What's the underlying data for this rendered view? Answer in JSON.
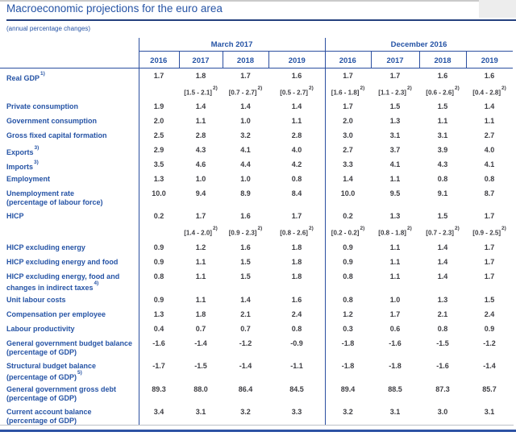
{
  "page": {
    "title": "Macroeconomic projections for the euro area",
    "subtitle": "(annual percentage changes)"
  },
  "table": {
    "groups": [
      {
        "label": "March 2017",
        "years": [
          "2016",
          "2017",
          "2018",
          "2019"
        ]
      },
      {
        "label": "December 2016",
        "years": [
          "2016",
          "2017",
          "2018",
          "2019"
        ]
      }
    ],
    "rows": [
      {
        "label": "Real GDP",
        "label_sup": "1)",
        "march": [
          "1.7",
          "1.8",
          "1.7",
          "1.6"
        ],
        "december": [
          "1.7",
          "1.7",
          "1.6",
          "1.6"
        ],
        "ranges": {
          "sup": "2)",
          "march": [
            "",
            "[1.5 - 2.1]",
            "[0.7 - 2.7]",
            "[0.5 - 2.7]"
          ],
          "december": [
            "[1.6 - 1.8]",
            "[1.1 - 2.3]",
            "[0.6 - 2.6]",
            "[0.4 - 2.8]"
          ]
        }
      },
      {
        "label": "Private consumption",
        "march": [
          "1.9",
          "1.4",
          "1.4",
          "1.4"
        ],
        "december": [
          "1.7",
          "1.5",
          "1.5",
          "1.4"
        ]
      },
      {
        "label": "Government consumption",
        "march": [
          "2.0",
          "1.1",
          "1.0",
          "1.1"
        ],
        "december": [
          "2.0",
          "1.3",
          "1.1",
          "1.1"
        ]
      },
      {
        "label": "Gross fixed capital formation",
        "march": [
          "2.5",
          "2.8",
          "3.2",
          "2.8"
        ],
        "december": [
          "3.0",
          "3.1",
          "3.1",
          "2.7"
        ]
      },
      {
        "label": "Exports",
        "label_sup": "3)",
        "march": [
          "2.9",
          "4.3",
          "4.1",
          "4.0"
        ],
        "december": [
          "2.7",
          "3.7",
          "3.9",
          "4.0"
        ]
      },
      {
        "label": "Imports",
        "label_sup": "3)",
        "march": [
          "3.5",
          "4.6",
          "4.4",
          "4.2"
        ],
        "december": [
          "3.3",
          "4.1",
          "4.3",
          "4.1"
        ]
      },
      {
        "label": "Employment",
        "march": [
          "1.3",
          "1.0",
          "1.0",
          "0.8"
        ],
        "december": [
          "1.4",
          "1.1",
          "0.8",
          "0.8"
        ]
      },
      {
        "label": "Unemployment rate",
        "label2": "(percentage of labour force)",
        "march": [
          "10.0",
          "9.4",
          "8.9",
          "8.4"
        ],
        "december": [
          "10.0",
          "9.5",
          "9.1",
          "8.7"
        ]
      },
      {
        "label": "HICP",
        "march": [
          "0.2",
          "1.7",
          "1.6",
          "1.7"
        ],
        "december": [
          "0.2",
          "1.3",
          "1.5",
          "1.7"
        ],
        "ranges": {
          "sup": "2)",
          "march": [
            "",
            "[1.4 - 2.0]",
            "[0.9 - 2.3]",
            "[0.8 - 2.6]"
          ],
          "december": [
            "[0.2 - 0.2]",
            "[0.8 - 1.8]",
            "[0.7 - 2.3]",
            "[0.9 - 2.5]"
          ]
        }
      },
      {
        "label": "HICP excluding energy",
        "march": [
          "0.9",
          "1.2",
          "1.6",
          "1.8"
        ],
        "december": [
          "0.9",
          "1.1",
          "1.4",
          "1.7"
        ]
      },
      {
        "label": "HICP excluding energy and food",
        "march": [
          "0.9",
          "1.1",
          "1.5",
          "1.8"
        ],
        "december": [
          "0.9",
          "1.1",
          "1.4",
          "1.7"
        ]
      },
      {
        "label": "HICP excluding energy, food and",
        "label2": "changes in indirect taxes",
        "label2_sup": "4)",
        "march": [
          "0.8",
          "1.1",
          "1.5",
          "1.8"
        ],
        "december": [
          "0.8",
          "1.1",
          "1.4",
          "1.7"
        ]
      },
      {
        "label": "Unit labour costs",
        "march": [
          "0.9",
          "1.1",
          "1.4",
          "1.6"
        ],
        "december": [
          "0.8",
          "1.0",
          "1.3",
          "1.5"
        ]
      },
      {
        "label": "Compensation per employee",
        "march": [
          "1.3",
          "1.8",
          "2.1",
          "2.4"
        ],
        "december": [
          "1.2",
          "1.7",
          "2.1",
          "2.4"
        ]
      },
      {
        "label": "Labour productivity",
        "march": [
          "0.4",
          "0.7",
          "0.7",
          "0.8"
        ],
        "december": [
          "0.3",
          "0.6",
          "0.8",
          "0.9"
        ]
      },
      {
        "label": "General government budget balance",
        "label2": "(percentage of GDP)",
        "march": [
          "-1.6",
          "-1.4",
          "-1.2",
          "-0.9"
        ],
        "december": [
          "-1.8",
          "-1.6",
          "-1.5",
          "-1.2"
        ]
      },
      {
        "label": "Structural budget balance",
        "label2": "(percentage of GDP)",
        "label2_sup": "5)",
        "march": [
          "-1.7",
          "-1.5",
          "-1.4",
          "-1.1"
        ],
        "december": [
          "-1.8",
          "-1.8",
          "-1.6",
          "-1.4"
        ]
      },
      {
        "label": "General government gross debt",
        "label2": "(percentage of GDP)",
        "march": [
          "89.3",
          "88.0",
          "86.4",
          "84.5"
        ],
        "december": [
          "89.4",
          "88.5",
          "87.3",
          "85.7"
        ]
      },
      {
        "label": "Current account balance",
        "label2": "(percentage of GDP)",
        "march": [
          "3.4",
          "3.1",
          "3.2",
          "3.3"
        ],
        "december": [
          "3.2",
          "3.1",
          "3.0",
          "3.1"
        ]
      }
    ]
  },
  "colors": {
    "accent_blue": "#2553a5",
    "title_rule_navy": "#24407e",
    "table_line_blue": "#2b4fa0",
    "value_text_gray": "#3d3d42",
    "bottom_bar_blue": "#2d52a4"
  }
}
